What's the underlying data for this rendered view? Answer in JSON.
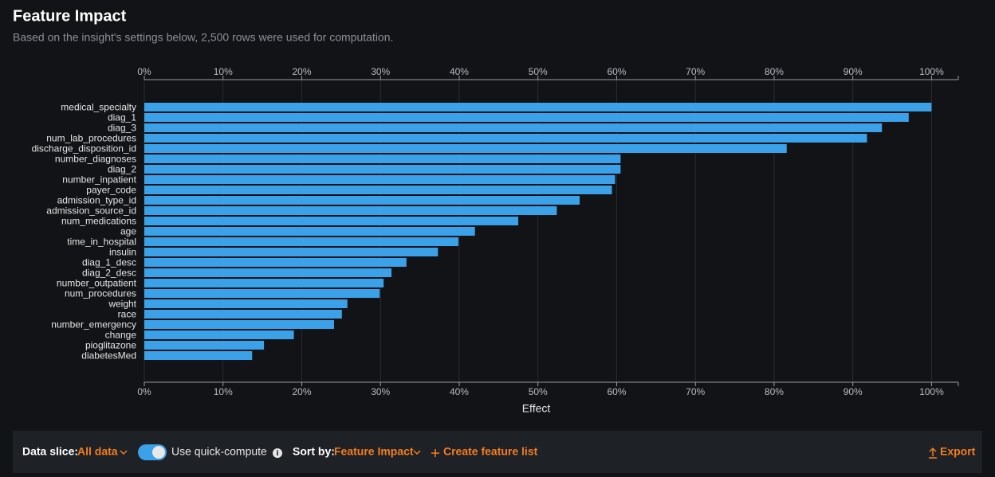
{
  "header": {
    "title": "Feature Impact",
    "subtitle": "Based on the insight's settings below, 2,500 rows were used for computation."
  },
  "chart_data": {
    "type": "hbar",
    "x_label": "Effect",
    "categories": [
      "medical_specialty",
      "diag_1",
      "diag_3",
      "num_lab_procedures",
      "discharge_disposition_id",
      "number_diagnoses",
      "diag_2",
      "number_inpatient",
      "payer_code",
      "admission_type_id",
      "admission_source_id",
      "num_medications",
      "age",
      "time_in_hospital",
      "insulin",
      "diag_1_desc",
      "diag_2_desc",
      "number_outpatient",
      "num_procedures",
      "weight",
      "race",
      "number_emergency",
      "change",
      "pioglitazone",
      "diabetesMed"
    ],
    "values": [
      100,
      97.1,
      93.7,
      91.8,
      81.6,
      60.5,
      60.5,
      59.8,
      59.4,
      55.3,
      52.4,
      47.5,
      42.0,
      39.9,
      37.3,
      33.3,
      31.4,
      30.4,
      29.9,
      25.8,
      25.1,
      24.1,
      19.0,
      15.2,
      13.7
    ],
    "color": "#3ba1e8",
    "xlim": [
      0,
      103.4
    ],
    "xticks": [
      {
        "value": 0,
        "label": "0%"
      },
      {
        "value": 10,
        "label": "10%"
      },
      {
        "value": 20,
        "label": "20%"
      },
      {
        "value": 30,
        "label": "30%"
      },
      {
        "value": 40,
        "label": "40%"
      },
      {
        "value": 50,
        "label": "50%"
      },
      {
        "value": 60,
        "label": "60%"
      },
      {
        "value": 70,
        "label": "70%"
      },
      {
        "value": 80,
        "label": "80%"
      },
      {
        "value": 90,
        "label": "90%"
      },
      {
        "value": 100,
        "label": "100%"
      }
    ],
    "grid": true
  },
  "footer": {
    "data_slice_label": "Data slice:",
    "data_slice_value": "All data",
    "quick_compute": "Use quick-compute",
    "sort_label": "Sort by:",
    "sort_value": "Feature Impact",
    "create_list": "Create feature list",
    "export": "Export"
  }
}
